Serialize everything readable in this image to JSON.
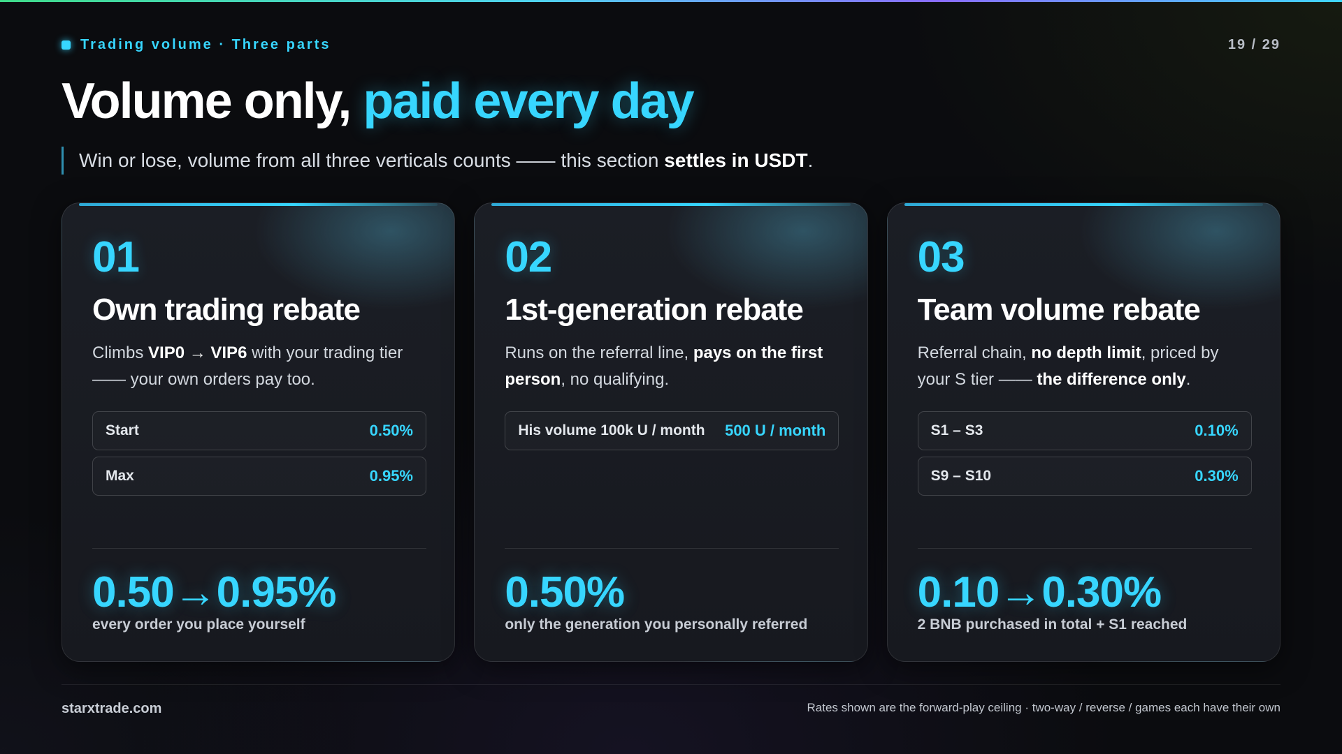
{
  "header": {
    "eyebrow": "Trading volume · Three parts",
    "page_indicator": "19 / 29"
  },
  "title": {
    "main": "Volume only, ",
    "accent": "paid every day"
  },
  "subtitle": {
    "text_before": "Win or lose, volume from all three verticals counts —— this section ",
    "bold": "settles in USDT",
    "text_after": "."
  },
  "cards": [
    {
      "number": "01",
      "title": "Own trading rebate",
      "desc": [
        {
          "t": "Climbs ",
          "b": false
        },
        {
          "t": "VIP0 → VIP6",
          "b": true
        },
        {
          "t": " with your trading tier —— your own orders pay too.",
          "b": false
        }
      ],
      "rates": [
        {
          "label": "Start",
          "value": "0.50%"
        },
        {
          "label": "Max",
          "value": "0.95%"
        }
      ],
      "big_value": "0.50→0.95%",
      "big_caption": "every order you place yourself"
    },
    {
      "number": "02",
      "title": "1st-generation rebate",
      "desc": [
        {
          "t": "Runs on the referral line, ",
          "b": false
        },
        {
          "t": "pays on the first person",
          "b": true
        },
        {
          "t": ", no qualifying.",
          "b": false
        }
      ],
      "rates": [
        {
          "label": "His volume 100k U / month",
          "value": "500 U / month"
        }
      ],
      "big_value": "0.50%",
      "big_caption": "only the generation you personally referred"
    },
    {
      "number": "03",
      "title": "Team volume rebate",
      "desc": [
        {
          "t": "Referral chain, ",
          "b": false
        },
        {
          "t": "no depth limit",
          "b": true
        },
        {
          "t": ", priced by your S tier —— ",
          "b": false
        },
        {
          "t": "the difference only",
          "b": true
        },
        {
          "t": ".",
          "b": false
        }
      ],
      "rates": [
        {
          "label": "S1 – S3",
          "value": "0.10%"
        },
        {
          "label": "S9 – S10",
          "value": "0.30%"
        }
      ],
      "big_value": "0.10→0.30%",
      "big_caption": "2 BNB purchased in total + S1 reached"
    }
  ],
  "footer": {
    "site": "starxtrade.com",
    "note": "Rates shown are the forward-play ceiling · two-way / reverse / games each have their own"
  },
  "colors": {
    "accent": "#37d6ff",
    "background": "#0b0c0f",
    "card_background": "#1b1e25"
  }
}
